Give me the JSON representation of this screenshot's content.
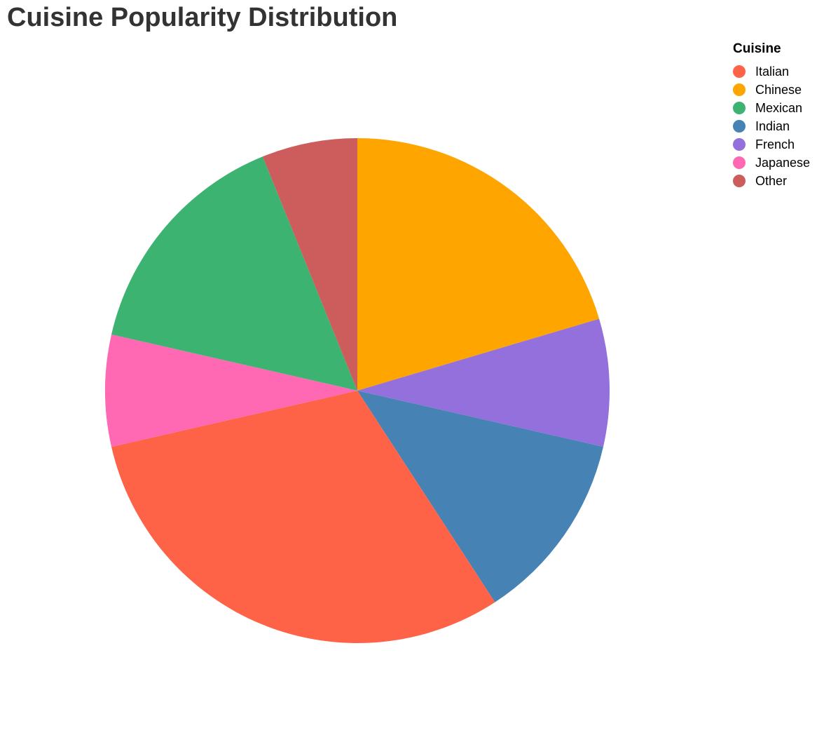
{
  "chart_data": {
    "type": "pie",
    "title": "Cuisine Popularity Distribution",
    "legend": {
      "title": "Cuisine",
      "placement": "top-right"
    },
    "categories": [
      "Italian",
      "Chinese",
      "Mexican",
      "Indian",
      "French",
      "Japanese",
      "Other"
    ],
    "values": [
      30,
      20,
      15,
      12,
      8,
      7,
      6
    ],
    "colors": [
      "#FF6347",
      "#FFA500",
      "#3CB371",
      "#4682B4",
      "#9370DB",
      "#FF69B4",
      "#CD5C5C"
    ],
    "slice_order": [
      "Chinese",
      "French",
      "Indian",
      "Italian",
      "Japanese",
      "Mexican",
      "Other"
    ]
  }
}
